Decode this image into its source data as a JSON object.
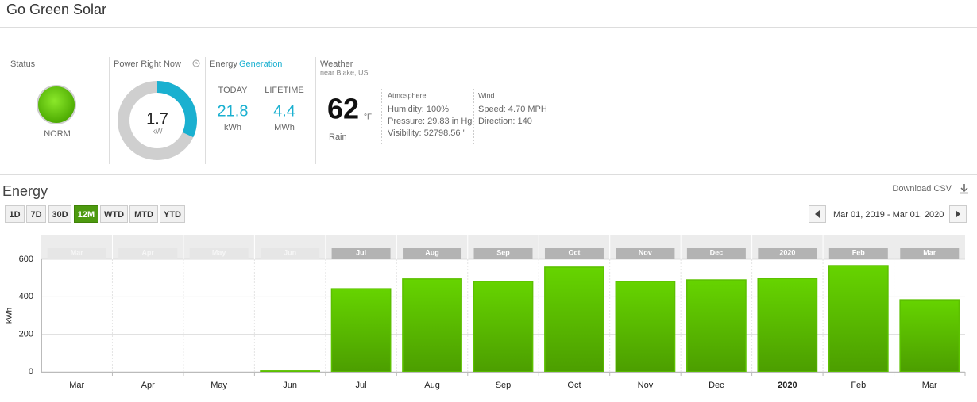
{
  "header": {
    "title": "Go Green Solar"
  },
  "status": {
    "label": "Status",
    "state": "NORM"
  },
  "power": {
    "label": "Power Right Now",
    "value": 1.7,
    "unit": "kW"
  },
  "energy_generation": {
    "label": "Energy",
    "label_highlight": "Generation",
    "today": {
      "label": "TODAY",
      "value": 21.8,
      "unit": "kWh"
    },
    "lifetime": {
      "label": "LIFETIME",
      "value": 4.4,
      "unit": "MWh"
    }
  },
  "weather": {
    "label": "Weather",
    "location": "near Blake, US",
    "temperature": 62,
    "temperature_unit": "°F",
    "condition": "Rain",
    "atmosphere": {
      "label": "Atmosphere",
      "humidity": "Humidity: 100%",
      "pressure": "Pressure: 29.83 in Hg",
      "visibility": "Visibility: 52798.56 '"
    },
    "wind": {
      "label": "Wind",
      "speed": "Speed: 4.70 MPH",
      "direction": "Direction: 140"
    }
  },
  "energy_section": {
    "title": "Energy",
    "download": "Download CSV",
    "ranges": [
      "1D",
      "7D",
      "30D",
      "12M",
      "WTD",
      "MTD",
      "YTD"
    ],
    "active_range": "12M",
    "date_range": "Mar 01, 2019 - Mar 01, 2020"
  },
  "chart_data": {
    "type": "bar",
    "categories": [
      "Mar",
      "Apr",
      "May",
      "Jun",
      "Jul",
      "Aug",
      "Sep",
      "Oct",
      "Nov",
      "Dec",
      "2020",
      "Feb",
      "Mar"
    ],
    "values": [
      0,
      0,
      0,
      5,
      443,
      495,
      482,
      558,
      482,
      490,
      498,
      566,
      384
    ],
    "color": "#5cc000",
    "y_label": "kWh",
    "ylim": [
      0,
      600
    ],
    "yticks": [
      0,
      200,
      400,
      600
    ],
    "grid": true
  }
}
